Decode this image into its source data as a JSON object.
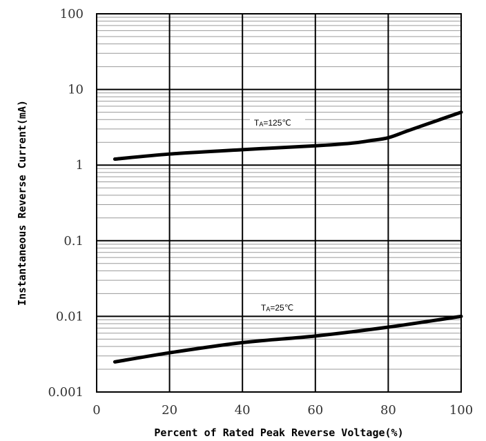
{
  "chart_data": {
    "type": "line",
    "title": "",
    "xlabel": "Percent of Rated Peak Reverse Voltage(%)",
    "ylabel": "Instantaneous Reverse Current(mA)",
    "x_scale": "linear",
    "y_scale": "log",
    "xlim": [
      0,
      100
    ],
    "ylim": [
      0.001,
      100
    ],
    "x_ticks": [
      "0",
      "20",
      "40",
      "60",
      "80",
      "100"
    ],
    "y_ticks": [
      "100",
      "10",
      "1",
      "0.1",
      "0.01",
      "0.001"
    ],
    "grid": true,
    "legend": "none",
    "line_color": "#000000",
    "grid_color": "#999999",
    "series": [
      {
        "annotation": {
          "prefix": "T",
          "subscript": "A",
          "suffix": "=125℃"
        },
        "x": [
          5,
          20,
          40,
          60,
          70,
          75,
          80,
          85,
          90,
          100
        ],
        "y": [
          1.2,
          1.4,
          1.6,
          1.8,
          1.95,
          2.1,
          2.3,
          2.8,
          3.4,
          5.0
        ]
      },
      {
        "annotation": {
          "prefix": "T",
          "subscript": "A",
          "suffix": "=25℃"
        },
        "x": [
          5,
          20,
          40,
          60,
          80,
          100
        ],
        "y": [
          0.0025,
          0.0033,
          0.0045,
          0.0055,
          0.0072,
          0.01
        ]
      }
    ]
  }
}
